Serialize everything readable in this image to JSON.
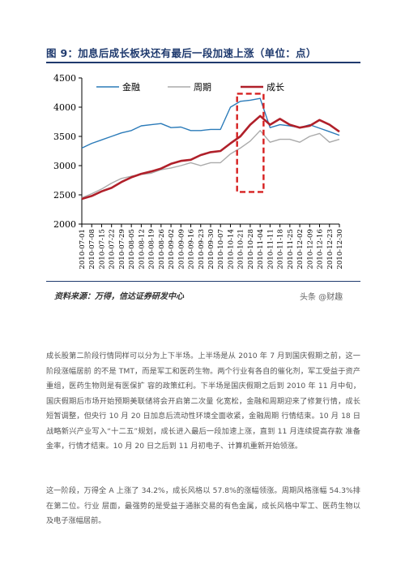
{
  "figure": {
    "title": "图 9：加息后成长板块还有最后一段加速上涨（单位：点）",
    "source": "资料来源：万得，信达证券研发中心",
    "watermark": "头条 @财趣"
  },
  "colors": {
    "finance": "#2b7bb9",
    "cycle": "#aaaaaa",
    "growth": "#b0202a",
    "highlight_box": "#d62020",
    "title_blue": "#1f3a6e"
  },
  "chart_data": {
    "type": "line",
    "title": "",
    "xlabel": "",
    "ylabel": "",
    "ylim": [
      2000,
      4500
    ],
    "yticks": [
      2000,
      2500,
      3000,
      3500,
      4000,
      4500
    ],
    "xticks": [
      "2010-07-01",
      "2010-07-08",
      "2010-07-15",
      "2010-07-22",
      "2010-07-29",
      "2010-08-05",
      "2010-08-12",
      "2010-08-19",
      "2010-08-26",
      "2010-09-02",
      "2010-09-09",
      "2010-09-16",
      "2010-09-23",
      "2010-09-30",
      "2010-10-07",
      "2010-10-14",
      "2010-10-21",
      "2010-10-28",
      "2010-11-04",
      "2010-11-11",
      "2010-11-18",
      "2010-11-25",
      "2010-12-02",
      "2010-12-09",
      "2010-12-16",
      "2010-12-23",
      "2010-12-30"
    ],
    "legend_position": "top",
    "highlight": {
      "x_start": "2010-10-21",
      "x_end": "2010-11-11",
      "y_bottom": 2550,
      "y_top": 4230
    },
    "series": [
      {
        "name": "金融",
        "key": "finance",
        "values": [
          3300,
          3380,
          3440,
          3500,
          3560,
          3600,
          3680,
          3700,
          3720,
          3650,
          3660,
          3600,
          3600,
          3620,
          3620,
          4000,
          4100,
          4120,
          4150,
          3650,
          3700,
          3680,
          3650,
          3700,
          3640,
          3580,
          3520
        ]
      },
      {
        "name": "周期",
        "key": "cycle",
        "values": [
          2450,
          2520,
          2600,
          2700,
          2780,
          2820,
          2850,
          2870,
          2930,
          2960,
          3000,
          3050,
          3000,
          3050,
          3050,
          3200,
          3300,
          3420,
          3600,
          3400,
          3450,
          3450,
          3400,
          3500,
          3550,
          3400,
          3450
        ]
      },
      {
        "name": "成长",
        "key": "growth",
        "values": [
          2430,
          2480,
          2560,
          2620,
          2720,
          2800,
          2860,
          2900,
          2950,
          3030,
          3080,
          3100,
          3180,
          3230,
          3250,
          3380,
          3500,
          3700,
          3850,
          3700,
          3800,
          3700,
          3650,
          3680,
          3780,
          3700,
          3580
        ]
      }
    ]
  },
  "paragraphs": [
    "成长股第二阶段行情同样可以分为上下半场。上半场是从 2010 年 7 月到国庆假期之前，这一阶段涨幅居前 的不是 TMT，而是军工和医药生物。两个行业有各自的催化剂，军工受益于资产重组，医药生物则是有医保扩 容的政策红利。下半场是国庆假期之后到 2010 年 11 月中旬，国庆假期后市场开始预期美联储将会开启第二次量 化宽松，金融和周期迎来了修复行情，成长短暂调整，但央行 10 月 20 日加息后流动性环境全面收紧，金融周期 行情结束。10 月 18 日战略新兴产业写入“十二五”规划，成长进入最后一段加速上涨，直到 11 月连续提高存款 准备金率，行情才结束。10 月 20 日之后到 11 月初电子、计算机重新开始领涨。",
    "这一阶段，万得全 A 上涨了 34.2%，成长风格以 57.8%的涨幅领涨。周期风格涨幅 54.3%排在第二位。行业 层面，最强势的是受益于通胀交易的有色金属，成长风格中军工、医药生物以及电子涨幅居前。"
  ]
}
